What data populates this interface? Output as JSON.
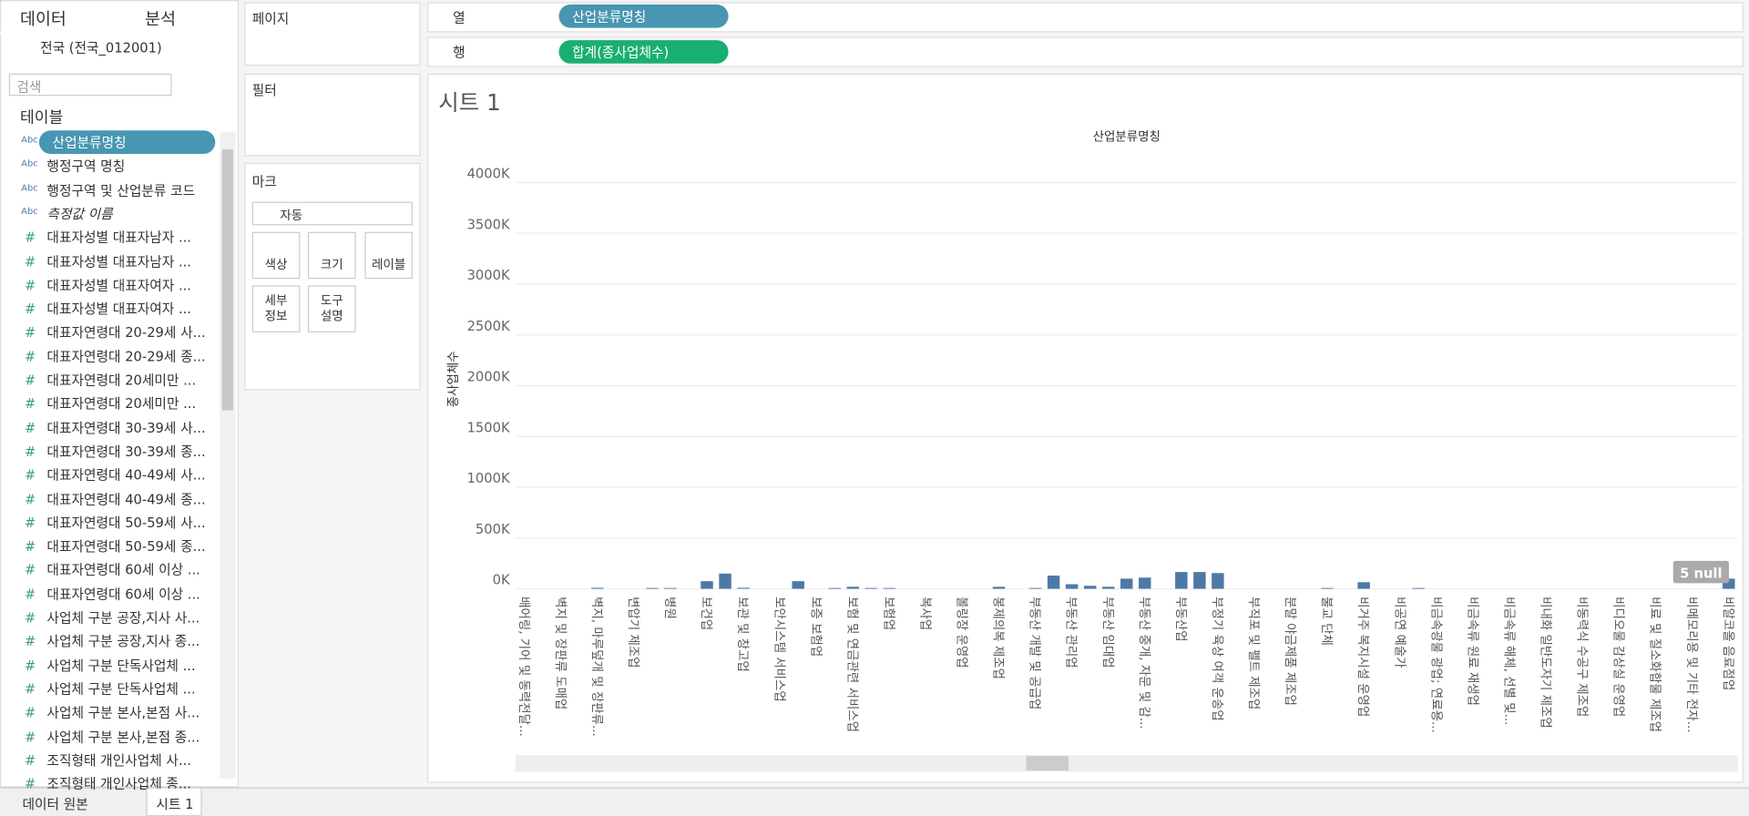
{
  "left_panel": {
    "tabs": [
      "데이터",
      "분석"
    ],
    "source": "전국 (전국_012001)",
    "search_placeholder": "검색",
    "tables_heading": "테이블",
    "fields": [
      {
        "icon": "Abc",
        "name": "산업분류명칭"
      },
      {
        "icon": "Abc",
        "name": "행정구역 명칭"
      },
      {
        "icon": "Abc",
        "name": "행정구역 및 산업분류 코드"
      },
      {
        "icon": "Abc",
        "name": "측정값 이름"
      },
      {
        "icon": "#",
        "name": "대표자성별 대표자남자 ..."
      },
      {
        "icon": "#",
        "name": "대표자성별 대표자남자 ..."
      },
      {
        "icon": "#",
        "name": "대표자성별 대표자여자 ..."
      },
      {
        "icon": "#",
        "name": "대표자성별 대표자여자 ..."
      },
      {
        "icon": "#",
        "name": "대표자연령대 20-29세 사..."
      },
      {
        "icon": "#",
        "name": "대표자연령대 20-29세 종..."
      },
      {
        "icon": "#",
        "name": "대표자연령대 20세미만 ..."
      },
      {
        "icon": "#",
        "name": "대표자연령대 20세미만 ..."
      },
      {
        "icon": "#",
        "name": "대표자연령대 30-39세 사..."
      },
      {
        "icon": "#",
        "name": "대표자연령대 30-39세 종..."
      },
      {
        "icon": "#",
        "name": "대표자연령대 40-49세 사..."
      },
      {
        "icon": "#",
        "name": "대표자연령대 40-49세 종..."
      },
      {
        "icon": "#",
        "name": "대표자연령대 50-59세 사..."
      },
      {
        "icon": "#",
        "name": "대표자연령대 50-59세 종..."
      },
      {
        "icon": "#",
        "name": "대표자연령대 60세 이상 ..."
      },
      {
        "icon": "#",
        "name": "대표자연령대 60세 이상 ..."
      },
      {
        "icon": "#",
        "name": "사업체 구분 공장,지사 사..."
      },
      {
        "icon": "#",
        "name": "사업체 구분 공장,지사 종..."
      },
      {
        "icon": "#",
        "name": "사업체 구분 단독사업체 ..."
      },
      {
        "icon": "#",
        "name": "사업체 구분 단독사업체 ..."
      },
      {
        "icon": "#",
        "name": "사업체 구분 본사,본점 사..."
      },
      {
        "icon": "#",
        "name": "사업체 구분 본사,본점 종..."
      },
      {
        "icon": "#",
        "name": "조직형태 개인사업체 사..."
      },
      {
        "icon": "#",
        "name": "조직형태 개인사업체 종..."
      }
    ]
  },
  "shelves": {
    "pages": "페이지",
    "columns_label": "열",
    "columns_pill": "산업분류명칭",
    "rows_label": "행",
    "rows_pill": "합계(종사업체수)",
    "filters": "필터",
    "marks": "마크",
    "mark_type": "자동",
    "mark_buttons": [
      "색상",
      "크기",
      "레이블",
      "세부\n정보",
      "도구\n설명"
    ]
  },
  "sheet_title": "시트 1",
  "bottom_tabs": [
    "데이터 원본",
    "시트 1"
  ],
  "chart_data": {
    "type": "bar",
    "header": "산업분류명칭",
    "y_label": "종사업체수",
    "color": "#4e79a7",
    "null_indicator": "5 null",
    "grid": true,
    "ylim": [
      0,
      4150000
    ],
    "yticks": [
      {
        "value": 0,
        "label": "0K"
      },
      {
        "value": 500000,
        "label": "500K"
      },
      {
        "value": 1000000,
        "label": "1000K"
      },
      {
        "value": 1500000,
        "label": "1500K"
      },
      {
        "value": 2000000,
        "label": "2000K"
      },
      {
        "value": 2500000,
        "label": "2500K"
      },
      {
        "value": 3000000,
        "label": "3000K"
      },
      {
        "value": 3500000,
        "label": "3500K"
      },
      {
        "value": 4000000,
        "label": "4000K"
      }
    ],
    "categories": [
      "배어링, 기어 및 동력전달...",
      null,
      "벽지 및 장판류 도매업",
      null,
      "벽지, 마루덮개 및 장판류...",
      null,
      "변압기 제조업",
      null,
      "병원",
      null,
      "보건업",
      null,
      "보관 및 창고업",
      null,
      "보안시스템 서비스업",
      null,
      "보증 보험업",
      null,
      "보험 및 연금관련 서비스업",
      null,
      "보험업",
      null,
      "복사업",
      null,
      "볼링장 운영업",
      null,
      "봉제의복 제조업",
      null,
      "부동산 개발 및 공급업",
      null,
      "부동산 관리업",
      null,
      "부동산 임대업",
      null,
      "부동산 중개, 자문 및 감...",
      null,
      "부동산업",
      null,
      "부정기 육상 여객 운송업",
      null,
      "부직포 및 펠트 제조업",
      null,
      "분말 야금제품 제조업",
      null,
      "불교 단체",
      null,
      "비거주 복지시설 운영업",
      null,
      "비공연 예술가",
      null,
      "비금속광물 광업; 연료용...",
      null,
      "비금속류 원료 재생업",
      null,
      "비금속류 해체, 선별 및...",
      null,
      "비내화 일반도자기 제조업",
      null,
      "비동력식 수공구 제조업",
      null,
      "비디오물 감상실 운영업",
      null,
      "비료 및 질소화합물 제조업",
      null,
      "비메모리용 및 기타 전자...",
      null,
      "비알코올 음료점업"
    ],
    "values": [
      0,
      0,
      0,
      0,
      10000,
      0,
      0,
      8000,
      8000,
      0,
      75000,
      150000,
      10000,
      0,
      0,
      75000,
      0,
      8000,
      20000,
      8000,
      8000,
      0,
      0,
      0,
      0,
      0,
      20000,
      0,
      8000,
      130000,
      45000,
      30000,
      20000,
      100000,
      110000,
      0,
      165000,
      165000,
      155000,
      0,
      0,
      0,
      0,
      0,
      8000,
      0,
      65000,
      0,
      0,
      8000,
      0,
      0,
      0,
      0,
      0,
      0,
      0,
      0,
      0,
      0,
      0,
      0,
      0,
      0,
      0,
      0,
      100000
    ]
  }
}
